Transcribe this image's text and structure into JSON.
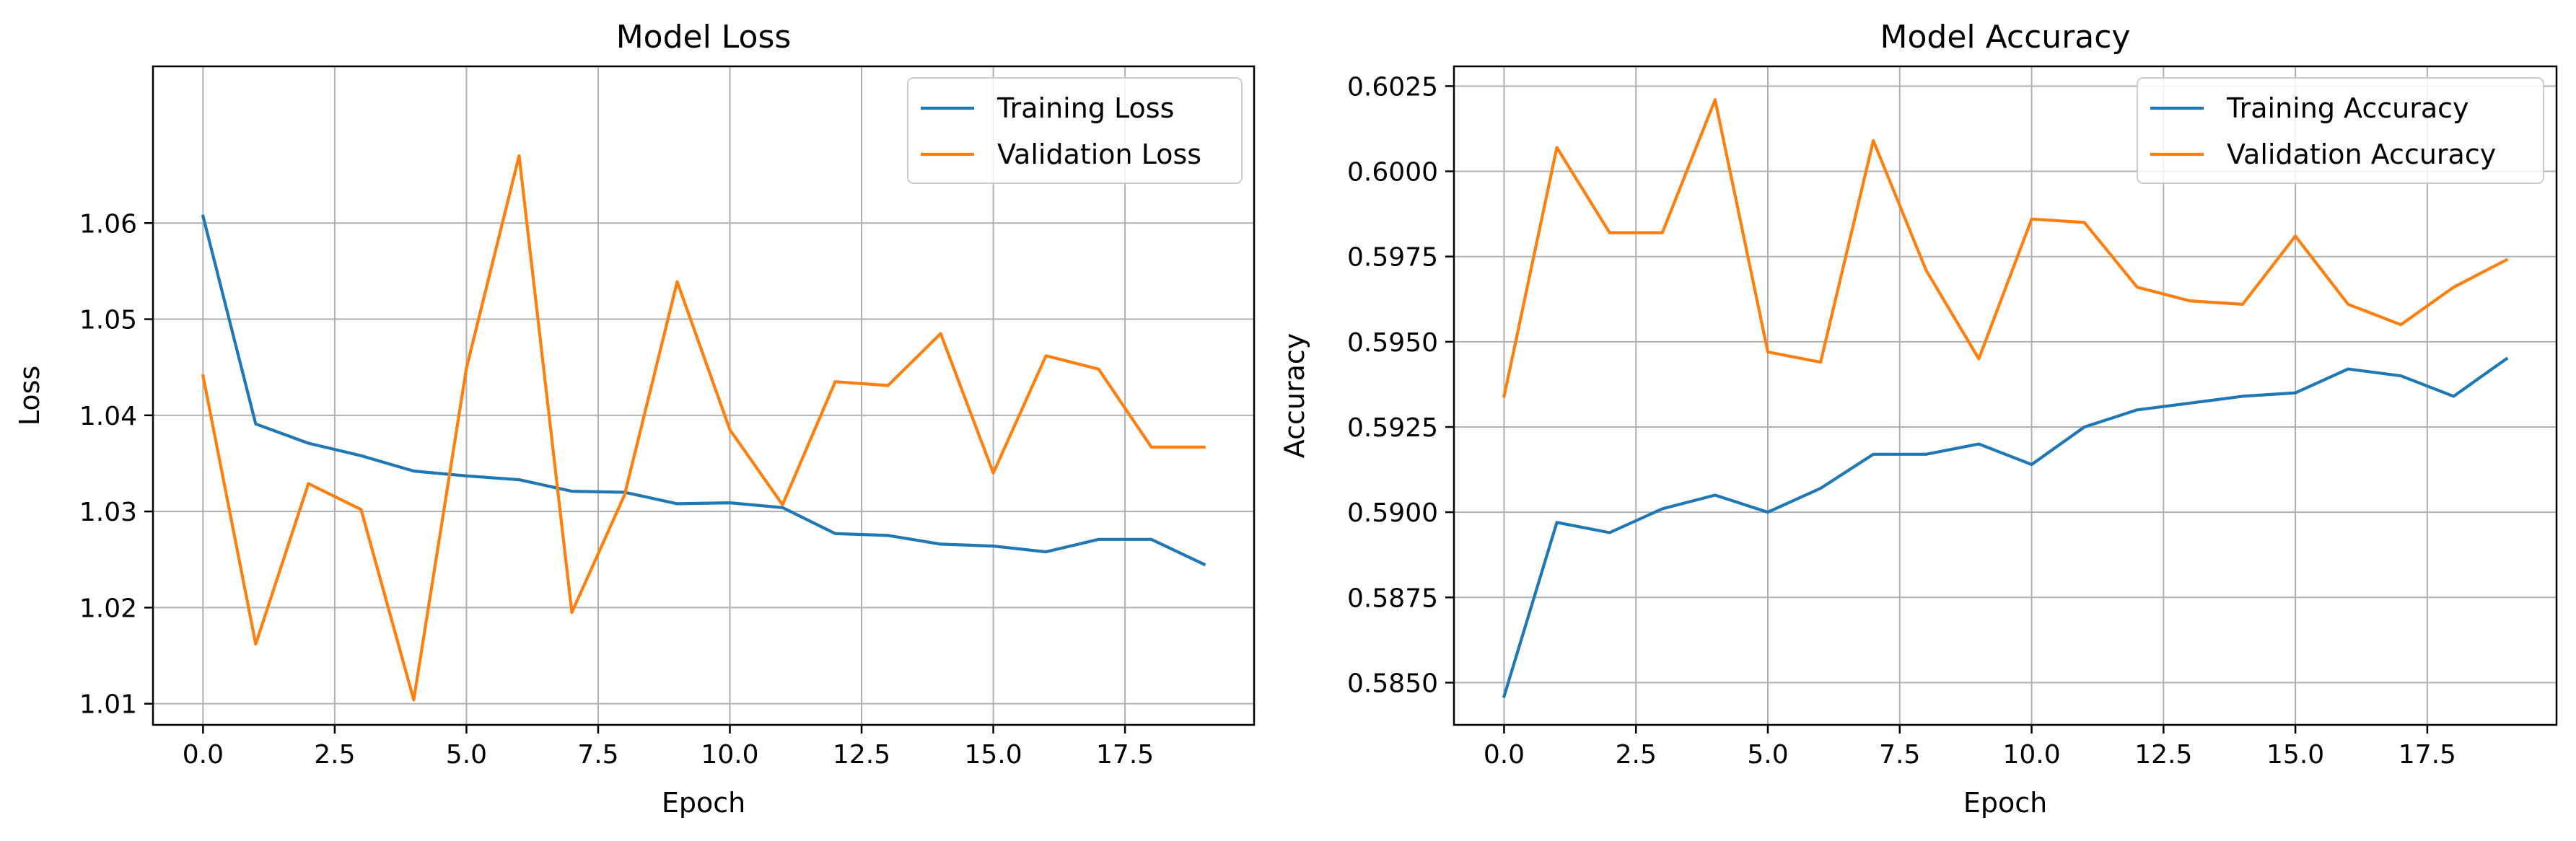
{
  "chart_data": [
    {
      "type": "line",
      "title": "Model Loss",
      "xlabel": "Epoch",
      "ylabel": "Loss",
      "xlim": [
        -0.95,
        19.95
      ],
      "ylim": [
        1.0078,
        1.0763
      ],
      "xticks": [
        0.0,
        2.5,
        5.0,
        7.5,
        10.0,
        12.5,
        15.0,
        17.5
      ],
      "xtick_labels": [
        "0.0",
        "2.5",
        "5.0",
        "7.5",
        "10.0",
        "12.5",
        "15.0",
        "17.5"
      ],
      "yticks": [
        1.01,
        1.02,
        1.03,
        1.04,
        1.05,
        1.06
      ],
      "ytick_labels": [
        "1.01",
        "1.02",
        "1.03",
        "1.04",
        "1.05",
        "1.06"
      ],
      "grid": true,
      "legend_position": "top-right",
      "x": [
        0,
        1,
        2,
        3,
        4,
        5,
        6,
        7,
        8,
        9,
        10,
        11,
        12,
        13,
        14,
        15,
        16,
        17,
        18,
        19
      ],
      "series": [
        {
          "name": "Training Loss",
          "color": "#1f77b4",
          "values": [
            1.0607,
            1.0391,
            1.0371,
            1.0358,
            1.0342,
            1.0337,
            1.0333,
            1.0321,
            1.032,
            1.0308,
            1.0309,
            1.0304,
            1.0277,
            1.0275,
            1.0266,
            1.0264,
            1.0258,
            1.0271,
            1.0271,
            1.0245
          ]
        },
        {
          "name": "Validation Loss",
          "color": "#ff7f0e",
          "values": [
            1.0441,
            1.0162,
            1.0329,
            1.0302,
            1.0104,
            1.0449,
            1.067,
            1.0195,
            1.0317,
            1.0539,
            1.0385,
            1.0307,
            1.0435,
            1.0431,
            1.0485,
            1.034,
            1.0462,
            1.0448,
            1.0367,
            1.0367
          ]
        }
      ]
    },
    {
      "type": "line",
      "title": "Model Accuracy",
      "xlabel": "Epoch",
      "ylabel": "Accuracy",
      "xlim": [
        -0.95,
        19.95
      ],
      "ylim": [
        0.58376,
        0.60308
      ],
      "xticks": [
        0.0,
        2.5,
        5.0,
        7.5,
        10.0,
        12.5,
        15.0,
        17.5
      ],
      "xtick_labels": [
        "0.0",
        "2.5",
        "5.0",
        "7.5",
        "10.0",
        "12.5",
        "15.0",
        "17.5"
      ],
      "yticks": [
        0.585,
        0.5875,
        0.59,
        0.5925,
        0.595,
        0.5975,
        0.6,
        0.6025
      ],
      "ytick_labels": [
        "0.5850",
        "0.5875",
        "0.5900",
        "0.5925",
        "0.5950",
        "0.5975",
        "0.6000",
        "0.6025"
      ],
      "grid": true,
      "legend_position": "top-right",
      "x": [
        0,
        1,
        2,
        3,
        4,
        5,
        6,
        7,
        8,
        9,
        10,
        11,
        12,
        13,
        14,
        15,
        16,
        17,
        18,
        19
      ],
      "series": [
        {
          "name": "Training Accuracy",
          "color": "#1f77b4",
          "values": [
            0.5846,
            0.5897,
            0.5894,
            0.5901,
            0.5905,
            0.59,
            0.5907,
            0.5917,
            0.5917,
            0.592,
            0.5914,
            0.5925,
            0.593,
            0.5932,
            0.5934,
            0.5935,
            0.5942,
            0.594,
            0.5934,
            0.5945
          ]
        },
        {
          "name": "Validation Accuracy",
          "color": "#ff7f0e",
          "values": [
            0.5934,
            0.6007,
            0.5982,
            0.5982,
            0.6021,
            0.5947,
            0.5944,
            0.6009,
            0.5971,
            0.5945,
            0.5986,
            0.5985,
            0.5966,
            0.5962,
            0.5961,
            0.5981,
            0.5961,
            0.5955,
            0.5966,
            0.5974
          ]
        }
      ]
    }
  ]
}
